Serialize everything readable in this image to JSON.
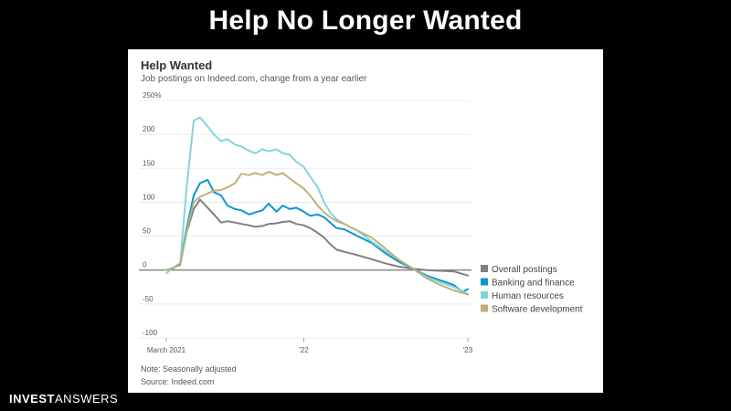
{
  "header": {
    "title": "Help No Longer Wanted"
  },
  "footer": {
    "brand_bold": "INVEST",
    "brand_light": "ANSWERS"
  },
  "colors": {
    "background": "#000000",
    "panel": "#ffffff",
    "gridline": "#e6e6e6",
    "zero_line": "#555555"
  },
  "chart_data": {
    "type": "line",
    "title": "Help Wanted",
    "subtitle": "Job postings on Indeed.com, change from a year earlier",
    "note": "Note: Seasonally adjusted",
    "source": "Source: Indeed.com",
    "ylim": [
      -100,
      250
    ],
    "y_ticks": [
      {
        "value": 250,
        "label": "250%"
      },
      {
        "value": 200,
        "label": "200"
      },
      {
        "value": 150,
        "label": "150"
      },
      {
        "value": 100,
        "label": "100"
      },
      {
        "value": 50,
        "label": "50"
      },
      {
        "value": 0,
        "label": "0"
      },
      {
        "value": -50,
        "label": "-50"
      },
      {
        "value": -100,
        "label": "-100"
      }
    ],
    "xlim": [
      "2021-03",
      "2023-01"
    ],
    "x_ticks": [
      {
        "value": "2021-03",
        "label": "March 2021"
      },
      {
        "value": "2022-01",
        "label": "'22"
      },
      {
        "value": "2023-01",
        "label": "'23"
      }
    ],
    "grid": true,
    "legend_position": "right",
    "series": [
      {
        "name": "Overall postings",
        "color": "#7f7f7f",
        "points": [
          [
            "2021-03",
            0
          ],
          [
            "2021-03-15",
            3
          ],
          [
            "2021-04",
            8
          ],
          [
            "2021-04-15",
            55
          ],
          [
            "2021-05",
            90
          ],
          [
            "2021-05-15",
            104
          ],
          [
            "2021-06",
            92
          ],
          [
            "2021-06-15",
            82
          ],
          [
            "2021-07",
            70
          ],
          [
            "2021-07-15",
            72
          ],
          [
            "2021-08",
            70
          ],
          [
            "2021-08-15",
            68
          ],
          [
            "2021-09",
            66
          ],
          [
            "2021-09-15",
            64
          ],
          [
            "2021-10",
            65
          ],
          [
            "2021-10-15",
            68
          ],
          [
            "2021-11",
            69
          ],
          [
            "2021-11-15",
            71
          ],
          [
            "2021-12",
            72
          ],
          [
            "2021-12-15",
            68
          ],
          [
            "2022-01",
            66
          ],
          [
            "2022-01-15",
            62
          ],
          [
            "2022-02",
            55
          ],
          [
            "2022-02-15",
            48
          ],
          [
            "2022-03",
            38
          ],
          [
            "2022-03-15",
            30
          ],
          [
            "2022-04",
            27
          ],
          [
            "2022-05",
            22
          ],
          [
            "2022-06",
            16
          ],
          [
            "2022-07",
            10
          ],
          [
            "2022-08",
            5
          ],
          [
            "2022-09",
            2
          ],
          [
            "2022-10",
            0
          ],
          [
            "2022-11",
            -1
          ],
          [
            "2022-12",
            -2
          ],
          [
            "2023-01",
            -8
          ]
        ]
      },
      {
        "name": "Banking and finance",
        "color": "#0d95d0",
        "points": [
          [
            "2021-03",
            0
          ],
          [
            "2021-03-15",
            2
          ],
          [
            "2021-04",
            10
          ],
          [
            "2021-04-15",
            60
          ],
          [
            "2021-05",
            110
          ],
          [
            "2021-05-15",
            128
          ],
          [
            "2021-06",
            133
          ],
          [
            "2021-06-15",
            115
          ],
          [
            "2021-07",
            110
          ],
          [
            "2021-07-15",
            95
          ],
          [
            "2021-08",
            90
          ],
          [
            "2021-08-15",
            88
          ],
          [
            "2021-09",
            82
          ],
          [
            "2021-09-15",
            85
          ],
          [
            "2021-10",
            88
          ],
          [
            "2021-10-15",
            98
          ],
          [
            "2021-11",
            86
          ],
          [
            "2021-11-15",
            95
          ],
          [
            "2021-12",
            90
          ],
          [
            "2021-12-15",
            92
          ],
          [
            "2022-01",
            86
          ],
          [
            "2022-01-15",
            80
          ],
          [
            "2022-02",
            82
          ],
          [
            "2022-02-15",
            78
          ],
          [
            "2022-03",
            70
          ],
          [
            "2022-03-15",
            62
          ],
          [
            "2022-04",
            60
          ],
          [
            "2022-05",
            50
          ],
          [
            "2022-06",
            40
          ],
          [
            "2022-07",
            25
          ],
          [
            "2022-08",
            12
          ],
          [
            "2022-09",
            2
          ],
          [
            "2022-10",
            -8
          ],
          [
            "2022-11",
            -15
          ],
          [
            "2022-12",
            -22
          ],
          [
            "2022-12-20",
            -32
          ],
          [
            "2023-01",
            -28
          ]
        ]
      },
      {
        "name": "Human resources",
        "color": "#84d4dc",
        "points": [
          [
            "2021-03",
            -5
          ],
          [
            "2021-03-15",
            3
          ],
          [
            "2021-04",
            10
          ],
          [
            "2021-04-15",
            120
          ],
          [
            "2021-05",
            220
          ],
          [
            "2021-05-15",
            225
          ],
          [
            "2021-06",
            212
          ],
          [
            "2021-06-15",
            200
          ],
          [
            "2021-07",
            190
          ],
          [
            "2021-07-15",
            193
          ],
          [
            "2021-08",
            185
          ],
          [
            "2021-08-15",
            182
          ],
          [
            "2021-09",
            176
          ],
          [
            "2021-09-15",
            172
          ],
          [
            "2021-10",
            178
          ],
          [
            "2021-10-15",
            175
          ],
          [
            "2021-11",
            178
          ],
          [
            "2021-11-15",
            172
          ],
          [
            "2021-12",
            170
          ],
          [
            "2021-12-15",
            160
          ],
          [
            "2022-01",
            152
          ],
          [
            "2022-01-15",
            138
          ],
          [
            "2022-02",
            122
          ],
          [
            "2022-02-15",
            100
          ],
          [
            "2022-03",
            85
          ],
          [
            "2022-03-15",
            75
          ],
          [
            "2022-04",
            68
          ],
          [
            "2022-05",
            58
          ],
          [
            "2022-06",
            42
          ],
          [
            "2022-07",
            28
          ],
          [
            "2022-08",
            15
          ],
          [
            "2022-09",
            2
          ],
          [
            "2022-10",
            -10
          ],
          [
            "2022-11",
            -18
          ],
          [
            "2022-12",
            -25
          ],
          [
            "2023-01",
            -35
          ]
        ]
      },
      {
        "name": "Software development",
        "color": "#bcb27a",
        "points": [
          [
            "2021-03",
            0
          ],
          [
            "2021-03-15",
            3
          ],
          [
            "2021-04",
            10
          ],
          [
            "2021-04-15",
            55
          ],
          [
            "2021-05",
            100
          ],
          [
            "2021-05-15",
            108
          ],
          [
            "2021-06",
            113
          ],
          [
            "2021-06-15",
            117
          ],
          [
            "2021-07",
            118
          ],
          [
            "2021-07-15",
            122
          ],
          [
            "2021-08",
            128
          ],
          [
            "2021-08-15",
            142
          ],
          [
            "2021-09",
            140
          ],
          [
            "2021-09-15",
            143
          ],
          [
            "2021-10",
            140
          ],
          [
            "2021-10-15",
            145
          ],
          [
            "2021-11",
            140
          ],
          [
            "2021-11-15",
            143
          ],
          [
            "2021-12",
            135
          ],
          [
            "2021-12-15",
            128
          ],
          [
            "2022-01",
            120
          ],
          [
            "2022-01-15",
            110
          ],
          [
            "2022-02",
            95
          ],
          [
            "2022-02-15",
            85
          ],
          [
            "2022-03",
            78
          ],
          [
            "2022-03-15",
            72
          ],
          [
            "2022-04",
            68
          ],
          [
            "2022-05",
            58
          ],
          [
            "2022-06",
            48
          ],
          [
            "2022-07",
            32
          ],
          [
            "2022-08",
            15
          ],
          [
            "2022-09",
            2
          ],
          [
            "2022-10",
            -12
          ],
          [
            "2022-11",
            -22
          ],
          [
            "2022-12",
            -30
          ],
          [
            "2023-01",
            -36
          ]
        ]
      }
    ]
  }
}
